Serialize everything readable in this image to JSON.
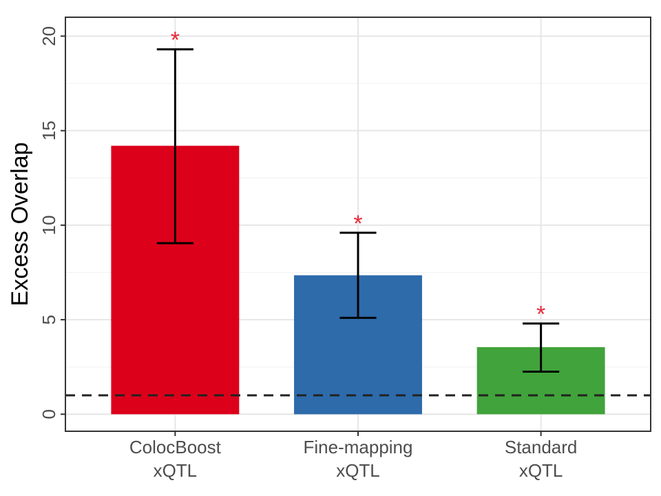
{
  "chart_data": {
    "type": "bar",
    "title": "",
    "xlabel": "",
    "ylabel": "Excess Overlap",
    "ylim": [
      -0.9,
      21
    ],
    "yticks": [
      0,
      5,
      10,
      15,
      20
    ],
    "grid": true,
    "reference_line": {
      "y": 1,
      "style": "dashed",
      "color": "#222222"
    },
    "categories": [
      {
        "lines": [
          "ColocBoost",
          "xQTL"
        ]
      },
      {
        "lines": [
          "Fine-mapping",
          "xQTL"
        ]
      },
      {
        "lines": [
          "Standard",
          "xQTL"
        ]
      }
    ],
    "values": [
      14.2,
      7.35,
      3.55
    ],
    "error_low": [
      9.05,
      5.1,
      2.25
    ],
    "error_high": [
      19.3,
      9.6,
      4.8
    ],
    "colors": [
      "#dc001a",
      "#2d6bab",
      "#41a33b"
    ],
    "significance_marks": [
      "*",
      "*",
      "*"
    ],
    "significance_color": "#e8293a"
  }
}
